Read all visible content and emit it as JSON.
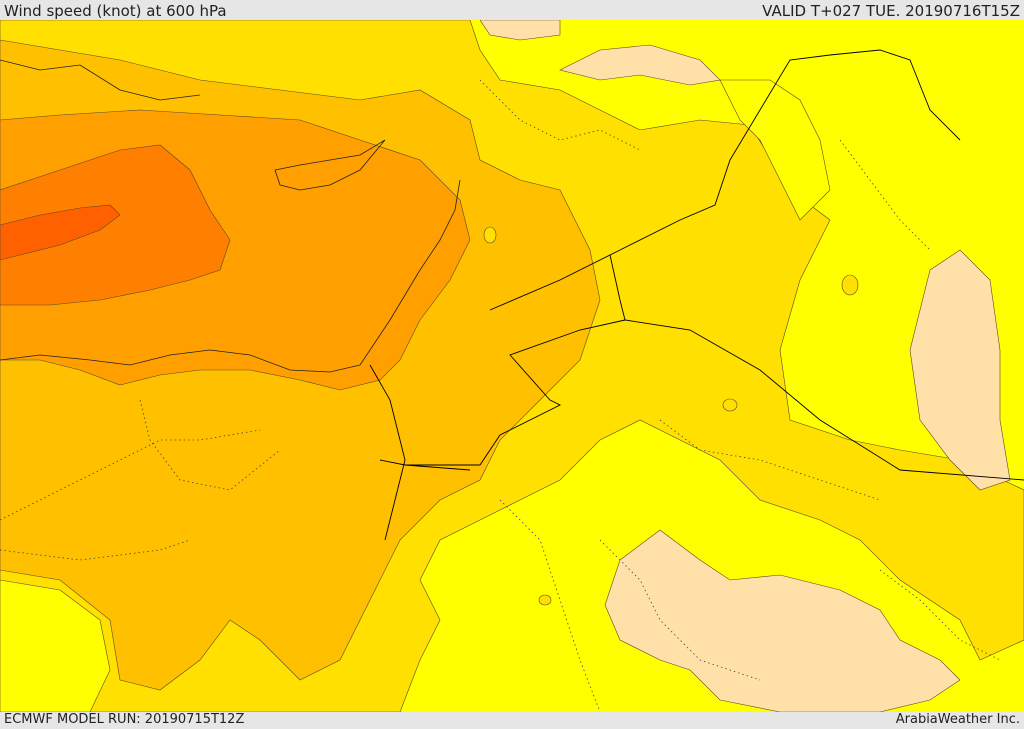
{
  "header": {
    "title": "Wind speed (knot) at 600 hPa",
    "valid": "VALID T+027 TUE. 20190716T15Z"
  },
  "footer": {
    "model_run": "ECMWF MODEL RUN: 20190715T12Z",
    "brand": "ArabiaWeather Inc."
  },
  "colors": {
    "band_lightest": "#ffe0a8",
    "band_yellow": "#ffff00",
    "band_gold": "#ffe000",
    "band_amber": "#ffc000",
    "band_orange": "#ffa000",
    "band_darkorange": "#ff8000",
    "band_red": "#ff6000",
    "contour": "#5a4a2a",
    "border": "#000000"
  }
}
